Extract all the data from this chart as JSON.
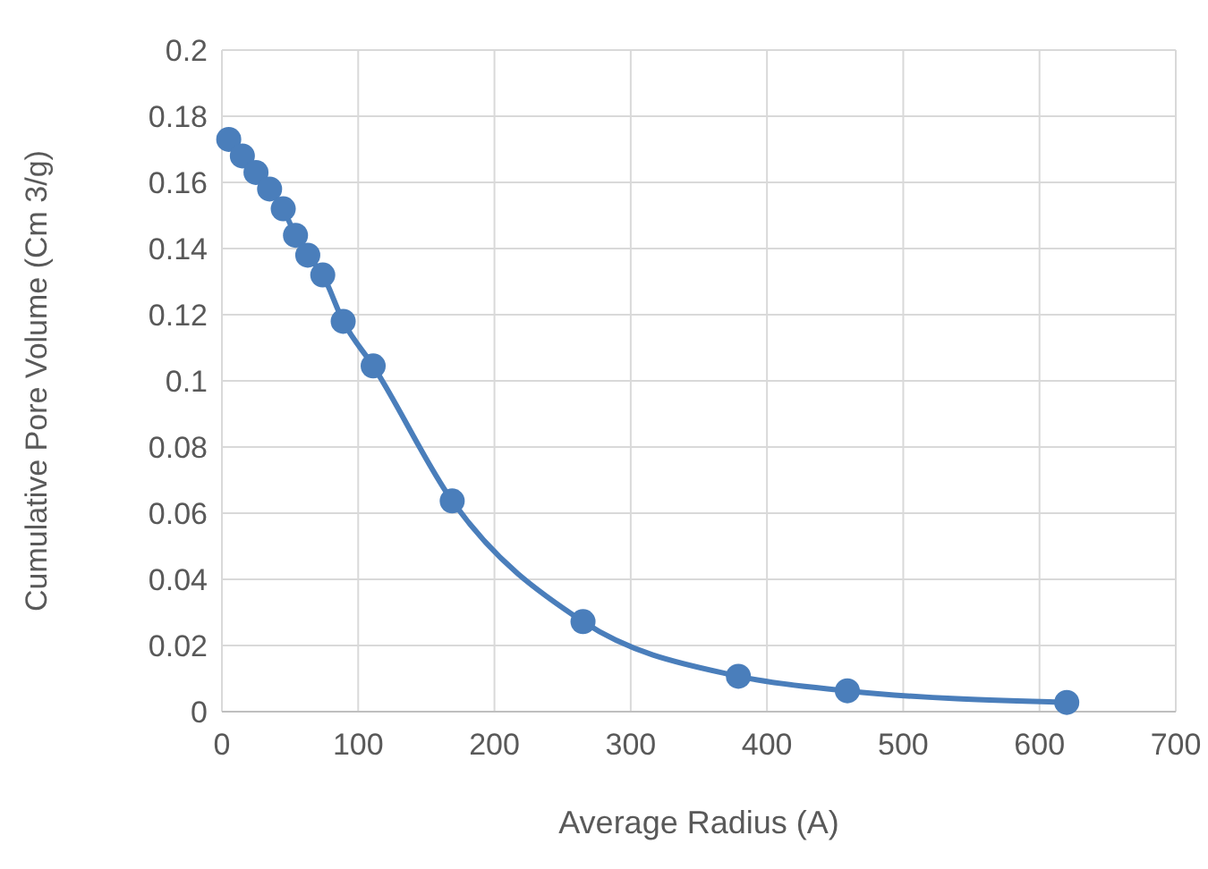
{
  "chart_data": {
    "type": "line",
    "xlabel": "Average Radius (A)",
    "ylabel": "Cumulative Pore Volume (Cm 3/g)",
    "x": [
      5,
      15,
      25,
      35,
      45,
      54,
      63,
      74,
      89,
      111,
      169,
      265,
      379,
      459,
      620
    ],
    "series": [
      {
        "color": "#4a7ebb",
        "values": [
          0.173,
          0.168,
          0.163,
          0.158,
          0.152,
          0.144,
          0.138,
          0.132,
          0.118,
          0.1045,
          0.0637,
          0.0272,
          0.0107,
          0.0063,
          0.0028
        ]
      }
    ],
    "xlim": [
      0,
      700
    ],
    "xticks": [
      0,
      100,
      200,
      300,
      400,
      500,
      600,
      700
    ],
    "ylim": [
      0,
      0.2
    ],
    "yticks": [
      0,
      0.02,
      0.04,
      0.06,
      0.08,
      0.1,
      0.12,
      0.14,
      0.16,
      0.18,
      0.2
    ],
    "grid": true,
    "marker": "circle",
    "line_style": "solid"
  }
}
